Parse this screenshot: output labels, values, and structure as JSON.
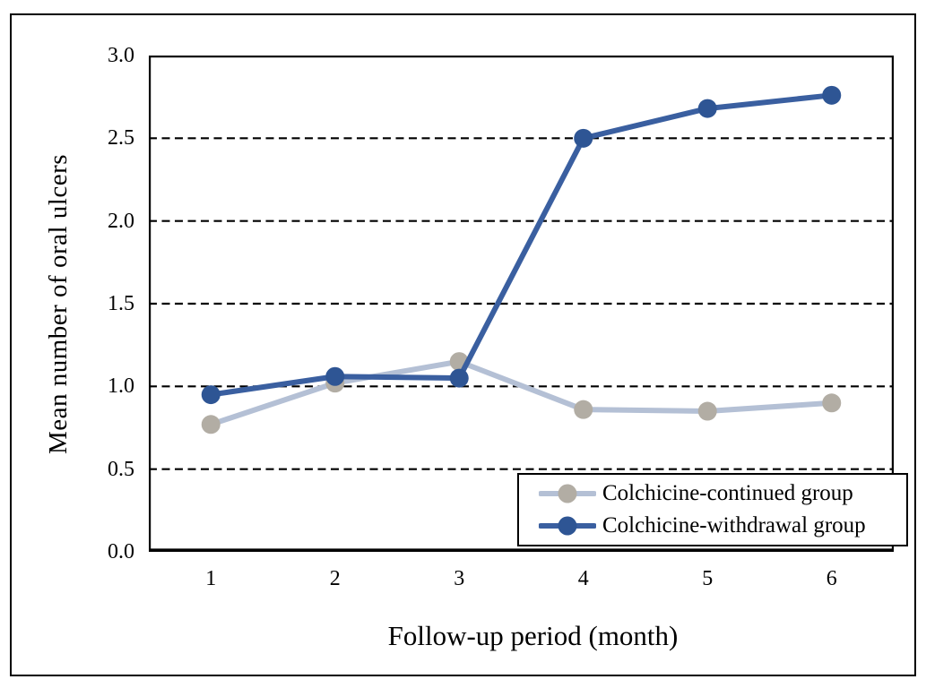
{
  "chart_data": {
    "type": "line",
    "title": "",
    "x": [
      1,
      2,
      3,
      4,
      5,
      6
    ],
    "xlabel": "Follow-up period (month)",
    "ylabel": "Mean number of oral ulcers",
    "ylim": [
      0.0,
      3.0
    ],
    "ytick_step": 0.5,
    "ytick_labels": [
      "3.0",
      "2.5",
      "2.0",
      "1.5",
      "1.0",
      "0.5",
      "0.0"
    ],
    "grid": "horizontal-dashed",
    "legend_position": "lower-right",
    "series": [
      {
        "name": "Colchicine-continued group",
        "values": [
          0.77,
          1.02,
          1.15,
          0.86,
          0.85,
          0.9
        ],
        "line_color": "#b4c0d5",
        "marker_color": "#b2ada4"
      },
      {
        "name": "Colchicine-withdrawal group",
        "values": [
          0.95,
          1.06,
          1.05,
          2.5,
          2.68,
          2.76
        ],
        "line_color": "#3a5fa0",
        "marker_color": "#2e5594"
      }
    ],
    "colors": {
      "axis": "#000000",
      "grid": "#000000",
      "background": "#ffffff",
      "frame_border": "#000000"
    }
  }
}
